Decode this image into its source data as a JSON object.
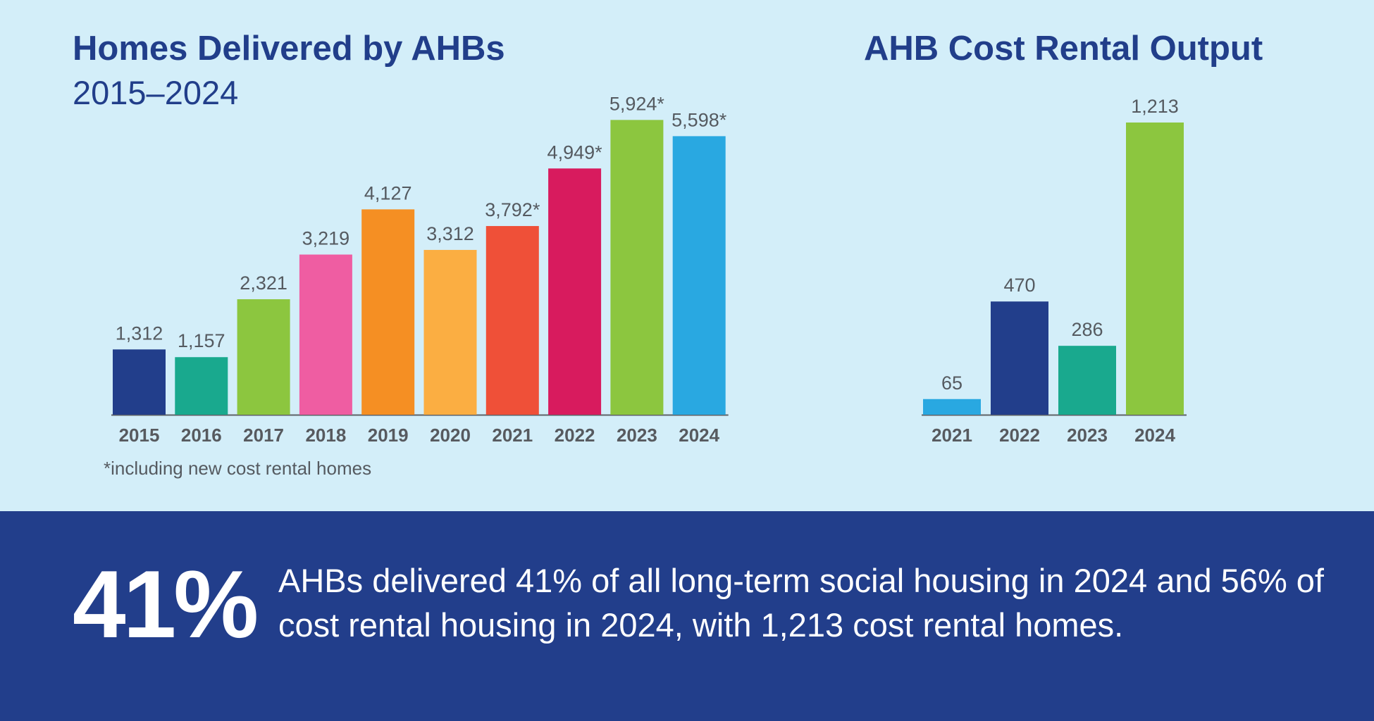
{
  "chart_data": [
    {
      "type": "bar",
      "title": "Homes Delivered by AHBs",
      "subtitle": "2015–2024",
      "categories": [
        "2015",
        "2016",
        "2017",
        "2018",
        "2019",
        "2020",
        "2021",
        "2022",
        "2023",
        "2024"
      ],
      "values": [
        1312,
        1157,
        2321,
        3219,
        4127,
        3312,
        3792,
        4949,
        5924,
        5598
      ],
      "value_labels": [
        "1,312",
        "1,157",
        "2,321",
        "3,219",
        "4,127",
        "3,312",
        "3,792*",
        "4,949*",
        "5,924*",
        "5,598*"
      ],
      "colors": [
        "#223e8b",
        "#19a98e",
        "#8cc63f",
        "#ef5da2",
        "#f58f23",
        "#fbae42",
        "#ef5038",
        "#d81b5e",
        "#8cc63f",
        "#29a8e1"
      ],
      "footnote": "*including new cost rental homes",
      "ylim": [
        0,
        6000
      ],
      "grid": false,
      "xlabel": "",
      "ylabel": ""
    },
    {
      "type": "bar",
      "title": "AHB Cost Rental Output",
      "categories": [
        "2021",
        "2022",
        "2023",
        "2024"
      ],
      "values": [
        65,
        470,
        286,
        1213
      ],
      "value_labels": [
        "65",
        "470",
        "286",
        "1,213"
      ],
      "colors": [
        "#29a8e1",
        "#223e8b",
        "#19a98e",
        "#8cc63f"
      ],
      "ylim": [
        0,
        1213
      ],
      "grid": false,
      "xlabel": "",
      "ylabel": ""
    }
  ],
  "banner": {
    "big_stat": "41%",
    "text": "AHBs delivered 41% of all long-term social housing in 2024 and 56% of cost rental housing in 2024, with 1,213 cost rental homes."
  }
}
